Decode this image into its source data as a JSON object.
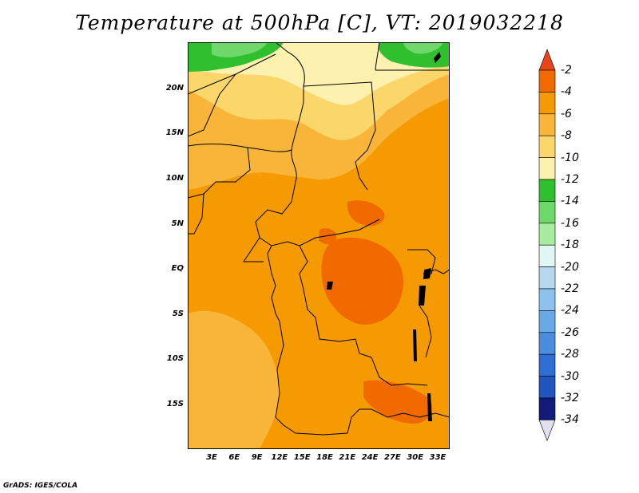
{
  "title": "Temperature at 500hPa [C], VT: 2019032218",
  "footer": "GrADS: IGES/COLA",
  "map": {
    "region": "Central Africa",
    "lat_labels": [
      "20N",
      "15N",
      "10N",
      "5N",
      "EQ",
      "5S",
      "10S",
      "15S"
    ],
    "lon_labels": [
      "3E",
      "6E",
      "9E",
      "12E",
      "15E",
      "18E",
      "21E",
      "24E",
      "27E",
      "30E",
      "33E"
    ]
  },
  "colorbar": {
    "labels": [
      "-2",
      "-4",
      "-6",
      "-8",
      "-10",
      "-12",
      "-14",
      "-16",
      "-18",
      "-20",
      "-22",
      "-24",
      "-26",
      "-28",
      "-30",
      "-32",
      "-34"
    ],
    "colors": [
      "#e8461a",
      "#f06a00",
      "#f59a00",
      "#f9b53a",
      "#fbd66b",
      "#fdf1b0",
      "#30c02f",
      "#6fd86b",
      "#a8eca1",
      "#e1f7f4",
      "#b6d9f0",
      "#8ec2ee",
      "#6aa9e8",
      "#4a8ddf",
      "#2f6ed4",
      "#1f55bc",
      "#131a7a",
      "#e0e0ee"
    ]
  },
  "field_colors": {
    "t_m4": "#f06a00",
    "t_m6": "#f59a00",
    "t_m8": "#f9b53a",
    "t_m10": "#fbd66b",
    "t_m12": "#fdf1b0",
    "t_m14": "#30c02f",
    "t_m16": "#6fd86b"
  }
}
